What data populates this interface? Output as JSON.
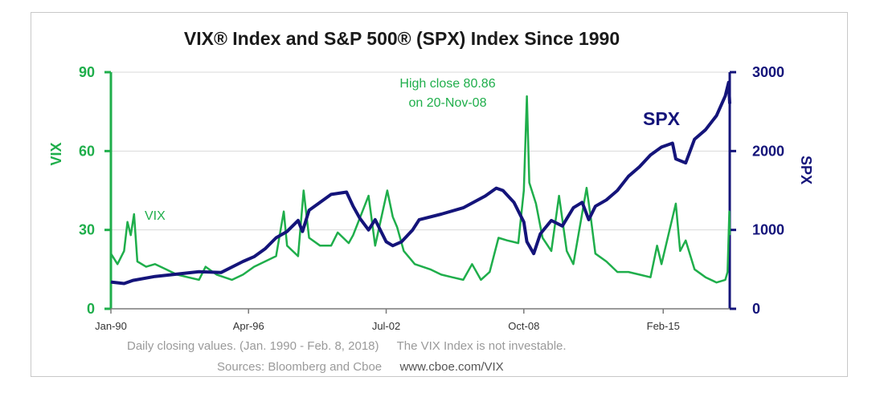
{
  "chart_data": {
    "type": "line",
    "title": "VIX® Index and S&P 500® (SPX) Index Since 1990",
    "y_left": {
      "label": "VIX",
      "min": 0,
      "max": 90,
      "ticks": [
        "0",
        "30",
        "60",
        "90"
      ]
    },
    "y_right": {
      "label": "SPX",
      "min": 0,
      "max": 3000,
      "ticks": [
        "0",
        "1000",
        "2000",
        "3000"
      ]
    },
    "x_ticks": [
      "Jan-90",
      "Apr-96",
      "Jul-02",
      "Oct-08",
      "Feb-15"
    ],
    "x_tick_years": [
      1990.0,
      1996.25,
      2002.5,
      2008.75,
      2015.08
    ],
    "x_range": [
      1990.0,
      2018.1
    ],
    "grid": true,
    "series": [
      {
        "name": "VIX",
        "axis": "left",
        "color": "#1fae4b",
        "points": [
          [
            1990.0,
            21
          ],
          [
            1990.3,
            17
          ],
          [
            1990.6,
            22
          ],
          [
            1990.75,
            33
          ],
          [
            1990.9,
            28
          ],
          [
            1991.05,
            36
          ],
          [
            1991.2,
            18
          ],
          [
            1991.6,
            16
          ],
          [
            1992.0,
            17
          ],
          [
            1992.5,
            15
          ],
          [
            1993.0,
            13
          ],
          [
            1993.5,
            12
          ],
          [
            1994.0,
            11
          ],
          [
            1994.3,
            16
          ],
          [
            1994.8,
            13
          ],
          [
            1995.5,
            11
          ],
          [
            1996.0,
            13
          ],
          [
            1996.5,
            16
          ],
          [
            1997.0,
            18
          ],
          [
            1997.5,
            20
          ],
          [
            1997.85,
            37
          ],
          [
            1998.0,
            24
          ],
          [
            1998.5,
            20
          ],
          [
            1998.75,
            45
          ],
          [
            1999.0,
            27
          ],
          [
            1999.5,
            24
          ],
          [
            2000.0,
            24
          ],
          [
            2000.3,
            29
          ],
          [
            2000.8,
            25
          ],
          [
            2001.0,
            28
          ],
          [
            2001.7,
            43
          ],
          [
            2002.0,
            24
          ],
          [
            2002.55,
            45
          ],
          [
            2002.8,
            35
          ],
          [
            2003.0,
            31
          ],
          [
            2003.3,
            22
          ],
          [
            2003.8,
            17
          ],
          [
            2004.5,
            15
          ],
          [
            2005.0,
            13
          ],
          [
            2005.5,
            12
          ],
          [
            2006.0,
            11
          ],
          [
            2006.4,
            17
          ],
          [
            2006.8,
            11
          ],
          [
            2007.2,
            14
          ],
          [
            2007.6,
            27
          ],
          [
            2008.0,
            26
          ],
          [
            2008.5,
            25
          ],
          [
            2008.75,
            45
          ],
          [
            2008.89,
            80.86
          ],
          [
            2009.0,
            48
          ],
          [
            2009.3,
            40
          ],
          [
            2009.6,
            27
          ],
          [
            2010.0,
            22
          ],
          [
            2010.35,
            43
          ],
          [
            2010.7,
            22
          ],
          [
            2011.0,
            17
          ],
          [
            2011.6,
            46
          ],
          [
            2011.8,
            34
          ],
          [
            2012.0,
            21
          ],
          [
            2012.5,
            18
          ],
          [
            2013.0,
            14
          ],
          [
            2013.5,
            14
          ],
          [
            2014.0,
            13
          ],
          [
            2014.5,
            12
          ],
          [
            2014.8,
            24
          ],
          [
            2015.0,
            17
          ],
          [
            2015.65,
            40
          ],
          [
            2015.85,
            22
          ],
          [
            2016.1,
            26
          ],
          [
            2016.5,
            15
          ],
          [
            2017.0,
            12
          ],
          [
            2017.5,
            10
          ],
          [
            2017.9,
            11
          ],
          [
            2018.0,
            14
          ],
          [
            2018.08,
            37
          ],
          [
            2018.1,
            28
          ]
        ]
      },
      {
        "name": "SPX",
        "axis": "right",
        "color": "#14147a",
        "points": [
          [
            1990.0,
            340
          ],
          [
            1990.6,
            320
          ],
          [
            1991.0,
            360
          ],
          [
            1992.0,
            410
          ],
          [
            1993.0,
            440
          ],
          [
            1994.0,
            470
          ],
          [
            1995.0,
            460
          ],
          [
            1996.0,
            600
          ],
          [
            1996.5,
            660
          ],
          [
            1997.0,
            760
          ],
          [
            1997.5,
            900
          ],
          [
            1998.0,
            980
          ],
          [
            1998.5,
            1120
          ],
          [
            1998.7,
            980
          ],
          [
            1999.0,
            1250
          ],
          [
            1999.5,
            1350
          ],
          [
            2000.0,
            1450
          ],
          [
            2000.7,
            1480
          ],
          [
            2001.0,
            1300
          ],
          [
            2001.3,
            1150
          ],
          [
            2001.7,
            1000
          ],
          [
            2002.0,
            1130
          ],
          [
            2002.5,
            850
          ],
          [
            2002.8,
            800
          ],
          [
            2003.2,
            850
          ],
          [
            2003.7,
            1000
          ],
          [
            2004.0,
            1130
          ],
          [
            2005.0,
            1200
          ],
          [
            2006.0,
            1280
          ],
          [
            2007.0,
            1430
          ],
          [
            2007.5,
            1530
          ],
          [
            2007.8,
            1500
          ],
          [
            2008.3,
            1350
          ],
          [
            2008.75,
            1100
          ],
          [
            2008.89,
            850
          ],
          [
            2009.2,
            700
          ],
          [
            2009.5,
            950
          ],
          [
            2010.0,
            1120
          ],
          [
            2010.5,
            1050
          ],
          [
            2011.0,
            1280
          ],
          [
            2011.4,
            1350
          ],
          [
            2011.7,
            1130
          ],
          [
            2012.0,
            1300
          ],
          [
            2012.5,
            1380
          ],
          [
            2013.0,
            1500
          ],
          [
            2013.5,
            1680
          ],
          [
            2014.0,
            1800
          ],
          [
            2014.5,
            1950
          ],
          [
            2015.0,
            2050
          ],
          [
            2015.5,
            2100
          ],
          [
            2015.65,
            1900
          ],
          [
            2016.1,
            1850
          ],
          [
            2016.5,
            2150
          ],
          [
            2017.0,
            2270
          ],
          [
            2017.5,
            2450
          ],
          [
            2017.9,
            2700
          ],
          [
            2018.05,
            2870
          ],
          [
            2018.1,
            2600
          ]
        ]
      }
    ],
    "annotations": [
      {
        "text_line1": "High close 80.86",
        "text_line2": "on 20-Nov-08",
        "color": "#1fae4b"
      },
      {
        "text": "VIX",
        "color": "#1fae4b"
      },
      {
        "text": "SPX",
        "color": "#14147a"
      }
    ]
  },
  "footer": {
    "line1_left": "Daily closing values.  (Jan. 1990 - Feb. 8, 2018)",
    "line1_right": "The VIX Index is not investable.",
    "line2_left": "Sources: Bloomberg and Cboe",
    "line2_right": "www.cboe.com/VIX"
  },
  "colors": {
    "vix": "#1fae4b",
    "spx": "#14147a",
    "grid": "#d9d9d9"
  }
}
